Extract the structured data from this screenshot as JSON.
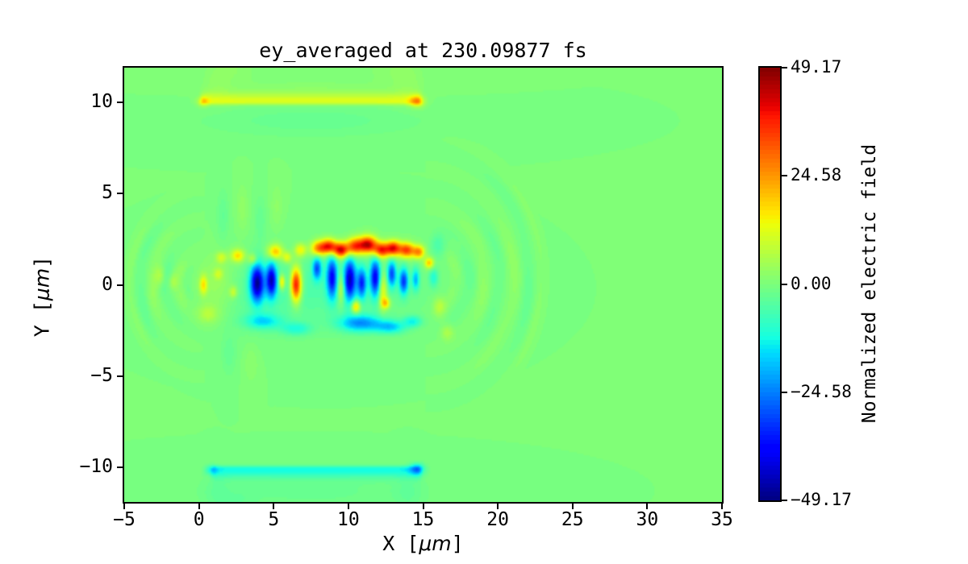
{
  "figure": {
    "title": "ey_averaged at 230.09877 fs",
    "background": "#ffffff",
    "frame_color": "#000000",
    "zero_level_color": "#7bff7a"
  },
  "axes": {
    "xlabel": {
      "prefix": "X [",
      "unit": "μm",
      "suffix": "]"
    },
    "ylabel": {
      "prefix": "Y [",
      "unit": "μm",
      "suffix": "]"
    },
    "x_ticks": [
      {
        "value": -5,
        "label": "−5"
      },
      {
        "value": 0,
        "label": "0"
      },
      {
        "value": 5,
        "label": "5"
      },
      {
        "value": 10,
        "label": "10"
      },
      {
        "value": 15,
        "label": "15"
      },
      {
        "value": 20,
        "label": "20"
      },
      {
        "value": 25,
        "label": "25"
      },
      {
        "value": 30,
        "label": "30"
      },
      {
        "value": 35,
        "label": "35"
      }
    ],
    "y_ticks": [
      {
        "value": 10,
        "label": "10"
      },
      {
        "value": 5,
        "label": "5"
      },
      {
        "value": 0,
        "label": "0"
      },
      {
        "value": -5,
        "label": "−5"
      },
      {
        "value": -10,
        "label": "−10"
      }
    ]
  },
  "colorbar": {
    "label": "Normalized electric field",
    "ticks": [
      {
        "value": 49.17,
        "label": "49.17"
      },
      {
        "value": 24.58,
        "label": "24.58"
      },
      {
        "value": 0,
        "label": "0.00"
      },
      {
        "value": -24.58,
        "label": "−24.58"
      },
      {
        "value": -49.17,
        "label": "−49.17"
      }
    ]
  },
  "chart_data": {
    "type": "heatmap",
    "title": "ey_averaged at 230.09877 fs",
    "xlabel": "X [μm]",
    "ylabel": "Y [μm]",
    "xlim": [
      -5,
      35
    ],
    "ylim": [
      -11.9,
      11.9
    ],
    "x_tick_values": [
      -5,
      0,
      5,
      10,
      15,
      20,
      25,
      30,
      35
    ],
    "y_tick_values": [
      10,
      5,
      0,
      -5,
      -10
    ],
    "vmin": -49.17,
    "vmax": 49.17,
    "n_levels": 100,
    "colormap": "jet",
    "colorbar_label": "Normalized electric field",
    "colorbar_tick_values": [
      49.17,
      24.58,
      0.0,
      -24.58,
      -49.17
    ],
    "description": "Averaged transverse electric field ey of a laser-wakefield PIC simulation at t = 230.09877 fs. A plasma channel with walls at y = ±10 μm spans x = 0..15 μm (positive yellow stripe on top wall, negative cyan stripe on bottom wall, each with a bright spot at x ≈ 14.6 and a fainter one at the left end). The laser/wake region on axis (|y| < 2.5 μm, 0 < x < 15.5 μm) shows a row of strong positive (red) lobes near y ≈ +2 μm, alternating strong negative (dark blue) and positive (red/orange) oscillations at y ≈ 0, and negative (cyan/blue) streaks near y ≈ -2 μm. Curved backscattered wavefronts fan out to the left of x = 0 and diverging wavefronts fan out to the right of x ≈ 15 up to x ≈ 23 μm. Background field is 0 (green).",
    "field_model": {
      "background": 0,
      "blobs": [
        [
          14.6,
          10.05,
          0.5,
          0.3,
          16
        ],
        [
          0.25,
          10.05,
          0.4,
          0.25,
          10
        ],
        [
          14.6,
          -10.1,
          0.5,
          0.3,
          -16
        ],
        [
          0.8,
          -10.15,
          0.4,
          0.25,
          -10
        ],
        [
          1.2,
          11.2,
          0.9,
          1.1,
          2.2
        ],
        [
          2.6,
          11.8,
          1.2,
          0.8,
          1.8
        ],
        [
          14.0,
          11.3,
          1.0,
          1.1,
          2.4
        ],
        [
          12.5,
          11.8,
          1.2,
          0.8,
          1.6
        ],
        [
          7.5,
          10.8,
          6.0,
          0.5,
          1.3
        ],
        [
          7.5,
          9.0,
          7.5,
          0.9,
          -2.6
        ],
        [
          1.2,
          -11.4,
          0.9,
          1.1,
          -2.2
        ],
        [
          2.7,
          -11.9,
          1.2,
          0.8,
          -1.8
        ],
        [
          14.0,
          -11.4,
          1.0,
          1.1,
          -2.4
        ],
        [
          7.5,
          -11.3,
          7.0,
          1.0,
          -2.4
        ],
        [
          8.5,
          -0.2,
          5.5,
          2.0,
          -5
        ],
        [
          3.5,
          -0.5,
          2.8,
          1.9,
          -3
        ],
        [
          1.3,
          0.0,
          1.4,
          1.6,
          5.5
        ],
        [
          0.6,
          -1.6,
          0.7,
          0.5,
          7
        ],
        [
          1.5,
          1.5,
          0.35,
          0.3,
          10
        ],
        [
          2.6,
          1.6,
          0.45,
          0.35,
          18
        ],
        [
          3.6,
          1.4,
          0.3,
          0.3,
          12
        ],
        [
          5.1,
          1.8,
          0.5,
          0.4,
          22
        ],
        [
          5.9,
          1.5,
          0.3,
          0.3,
          14
        ],
        [
          6.8,
          1.9,
          0.4,
          0.35,
          16
        ],
        [
          8.0,
          2.0,
          0.5,
          0.4,
          28
        ],
        [
          8.7,
          2.1,
          0.5,
          0.4,
          38
        ],
        [
          9.5,
          1.9,
          0.5,
          0.4,
          42
        ],
        [
          10.4,
          2.1,
          0.55,
          0.45,
          34
        ],
        [
          11.3,
          2.2,
          0.6,
          0.45,
          44
        ],
        [
          12.2,
          1.9,
          0.5,
          0.4,
          36
        ],
        [
          13.0,
          2.0,
          0.5,
          0.4,
          40
        ],
        [
          13.9,
          1.9,
          0.5,
          0.4,
          34
        ],
        [
          14.7,
          1.8,
          0.4,
          0.35,
          26
        ],
        [
          15.4,
          1.2,
          0.3,
          0.3,
          20
        ],
        [
          0.3,
          0.0,
          0.25,
          0.5,
          16
        ],
        [
          1.3,
          0.6,
          0.3,
          0.3,
          8
        ],
        [
          2.3,
          -0.4,
          0.25,
          0.3,
          10
        ],
        [
          3.9,
          0.1,
          0.45,
          1.0,
          -44
        ],
        [
          4.85,
          0.25,
          0.35,
          0.9,
          -40
        ],
        [
          5.55,
          0.15,
          0.2,
          0.4,
          20
        ],
        [
          6.5,
          0.0,
          0.35,
          0.9,
          42
        ],
        [
          7.9,
          0.9,
          0.3,
          0.6,
          -26
        ],
        [
          8.9,
          0.4,
          0.35,
          1.1,
          -34
        ],
        [
          9.5,
          -0.2,
          0.25,
          0.8,
          14
        ],
        [
          10.1,
          0.3,
          0.4,
          1.1,
          -40
        ],
        [
          10.9,
          0.1,
          0.3,
          0.8,
          -30
        ],
        [
          12.3,
          -0.3,
          0.3,
          1.0,
          16
        ],
        [
          11.8,
          0.4,
          0.35,
          1.0,
          -36
        ],
        [
          12.9,
          0.6,
          0.3,
          0.7,
          -28
        ],
        [
          13.7,
          0.2,
          0.3,
          0.7,
          -30
        ],
        [
          14.5,
          0.3,
          0.25,
          0.6,
          -18
        ],
        [
          10.5,
          -1.2,
          0.3,
          0.35,
          22
        ],
        [
          12.5,
          -1.0,
          0.3,
          0.3,
          18
        ],
        [
          4.3,
          -2.0,
          1.2,
          0.4,
          -14
        ],
        [
          6.5,
          -2.4,
          1.0,
          0.35,
          -10
        ],
        [
          10.8,
          -2.1,
          1.4,
          0.45,
          -22
        ],
        [
          12.8,
          -2.3,
          1.0,
          0.35,
          -16
        ],
        [
          14.3,
          -2.0,
          0.6,
          0.3,
          -12
        ],
        [
          15.7,
          0.4,
          0.3,
          0.5,
          -10
        ],
        [
          16.1,
          -1.2,
          0.4,
          0.5,
          8
        ],
        [
          16.0,
          2.2,
          0.5,
          0.6,
          -6
        ],
        [
          16.6,
          -2.6,
          0.4,
          0.4,
          6
        ],
        [
          -2.6,
          0.5,
          0.35,
          0.5,
          6
        ],
        [
          -1.7,
          0.15,
          0.3,
          0.4,
          5
        ],
        [
          1.6,
          3.8,
          0.4,
          1.4,
          -3
        ],
        [
          2.9,
          4.2,
          0.4,
          1.3,
          2.6
        ],
        [
          4.1,
          3.6,
          0.4,
          1.3,
          -2.6
        ],
        [
          5.2,
          4.3,
          0.4,
          1.2,
          2.2
        ],
        [
          2.0,
          -3.8,
          0.5,
          1.2,
          -2.5
        ],
        [
          3.5,
          -4.3,
          0.5,
          1.1,
          2.0
        ]
      ],
      "wall_stripes": [
        {
          "x0": -0.1,
          "x1": 15.1,
          "y": 10.05,
          "sLow": 0.18,
          "sHigh": 0.45,
          "amp": 12,
          "end": 0.5
        },
        {
          "x0": 0.6,
          "x1": 15.1,
          "y": -10.1,
          "sLow": 0.45,
          "sHigh": 0.18,
          "amp": -12,
          "end": 0.5
        }
      ],
      "ripples": [
        {
          "cx": 0.4,
          "cy": 0.1,
          "side": "left",
          "lambda": 1.7,
          "amp": 3.4,
          "r0": 5.2,
          "rmin": 0.7,
          "rmax": 5.6,
          "th0": 0.85
        },
        {
          "cx": 15.2,
          "cy": 0.4,
          "side": "right",
          "lambda": 2.0,
          "amp": 2.7,
          "r0": 7.9,
          "rmin": 1.2,
          "rmax": 8.3,
          "th0": 1.0
        }
      ]
    }
  }
}
